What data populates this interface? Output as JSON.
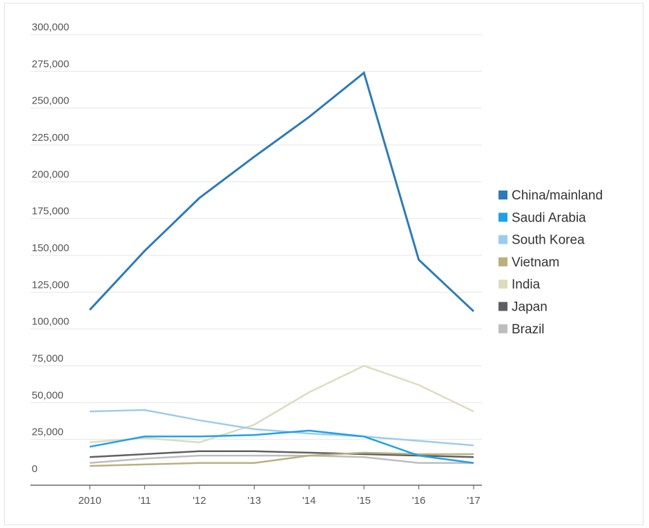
{
  "chart_data": {
    "type": "line",
    "title": "",
    "xlabel": "",
    "ylabel": "",
    "categories": [
      "2010",
      "'11",
      "'12",
      "'13",
      "'14",
      "'15",
      "'16",
      "'17"
    ],
    "y_tick_labels": [
      "0",
      "25,000",
      "50,000",
      "75,000",
      "100,000",
      "125,000",
      "150,000",
      "175,000",
      "200,000",
      "225,000",
      "250,000",
      "275,000",
      "300,000"
    ],
    "ylim": [
      0,
      300000
    ],
    "grid": true,
    "legend_position": "right",
    "series": [
      {
        "name": "China/mainland",
        "color": "#2c7bb6",
        "values": [
          113000,
          153000,
          189000,
          217000,
          244000,
          274000,
          147000,
          112000
        ]
      },
      {
        "name": "Saudi Arabia",
        "color": "#1da1e6",
        "values": [
          20000,
          27000,
          27000,
          28000,
          31000,
          27000,
          14000,
          9000
        ]
      },
      {
        "name": "South Korea",
        "color": "#9ccbef",
        "values": [
          44000,
          45000,
          38000,
          32000,
          29000,
          27000,
          24000,
          21000
        ]
      },
      {
        "name": "Vietnam",
        "color": "#b9b07c",
        "values": [
          7000,
          8000,
          9000,
          9000,
          14000,
          16000,
          15000,
          15000
        ]
      },
      {
        "name": "India",
        "color": "#dcdcbd",
        "values": [
          23000,
          26000,
          23000,
          35000,
          57000,
          75000,
          62000,
          44000
        ]
      },
      {
        "name": "Japan",
        "color": "#5e5f61",
        "values": [
          13000,
          15000,
          17000,
          17000,
          16000,
          15000,
          14000,
          13000
        ]
      },
      {
        "name": "Brazil",
        "color": "#bdbdbd",
        "values": [
          9000,
          12000,
          14000,
          14000,
          14000,
          13000,
          9000,
          9000
        ]
      }
    ]
  }
}
